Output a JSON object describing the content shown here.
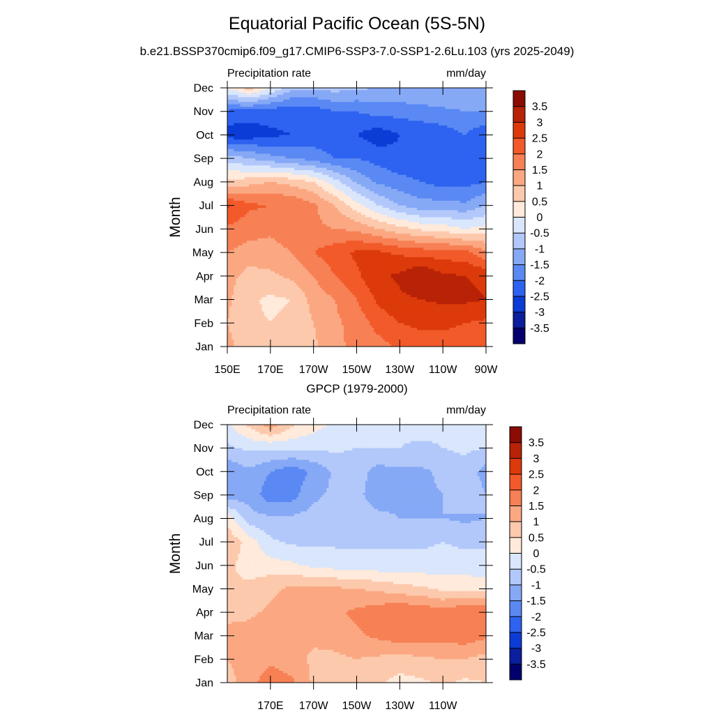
{
  "figure": {
    "title": "Equatorial Pacific Ocean (5S-5N)",
    "subtitle": "b.e21.BSSP370cmip6.f09_g17.CMIP6-SSP3-7.0-SSP1-2.6Lu.103 (yrs 2025-2049)",
    "lower_title": "GPCP (1979-2000)"
  },
  "colorbar": {
    "colors": [
      "#03006d",
      "#0a1e9e",
      "#0c3cd6",
      "#2e62f0",
      "#5a89f4",
      "#86a9f6",
      "#b2c8fa",
      "#d9e6fc",
      "#ffeadb",
      "#fdc9ad",
      "#fba882",
      "#f78055",
      "#f25a2a",
      "#dc3a0a",
      "#b82206",
      "#8a0c03"
    ],
    "labels": [
      "-3.5",
      "-3",
      "-2.5",
      "-2",
      "-1.5",
      "-1",
      "-0.5",
      "0",
      "0.5",
      "1",
      "1.5",
      "2",
      "2.5",
      "3",
      "3.5"
    ]
  },
  "chart_data": [
    {
      "type": "heatmap",
      "title": "",
      "left_label": "Precipitation rate",
      "right_label": "mm/day",
      "ylabel": "Month",
      "xlabel": "",
      "x_ticks": [
        "150E",
        "170E",
        "170W",
        "150W",
        "130W",
        "110W",
        "90W"
      ],
      "x_values": [
        150,
        170,
        190,
        210,
        230,
        250,
        270
      ],
      "xlim": [
        150,
        270
      ],
      "y_ticks": [
        "Jan",
        "Feb",
        "Mar",
        "Apr",
        "May",
        "Jun",
        "Jul",
        "Aug",
        "Sep",
        "Oct",
        "Nov",
        "Dec"
      ],
      "ylim": [
        1,
        12
      ],
      "grid_x": [
        150,
        160,
        170,
        180,
        190,
        200,
        210,
        220,
        230,
        240,
        250,
        260,
        270
      ],
      "grid_y": [
        "Jan",
        "Feb",
        "Mar",
        "Apr",
        "May",
        "Jun",
        "Jul",
        "Aug",
        "Sep",
        "Oct",
        "Nov",
        "Dec"
      ],
      "z": [
        [
          1.2,
          0.6,
          0.8,
          0.6,
          0.9,
          1.4,
          1.6,
          1.8,
          2.1,
          2.3,
          2.3,
          2.2,
          2.0
        ],
        [
          1.0,
          0.6,
          0.5,
          0.6,
          1.0,
          1.4,
          1.7,
          2.2,
          2.5,
          2.6,
          2.6,
          2.5,
          2.4
        ],
        [
          1.1,
          0.6,
          0.4,
          0.5,
          1.2,
          1.5,
          2.0,
          2.6,
          2.9,
          3.0,
          3.1,
          3.1,
          3.0
        ],
        [
          1.2,
          0.8,
          0.9,
          1.1,
          1.5,
          2.0,
          2.4,
          2.9,
          3.1,
          3.5,
          3.1,
          3.0,
          2.9
        ],
        [
          1.5,
          1.3,
          1.3,
          1.5,
          2.0,
          2.3,
          2.6,
          2.6,
          2.4,
          2.3,
          2.2,
          2.2,
          1.6
        ],
        [
          1.9,
          1.7,
          1.6,
          1.8,
          1.6,
          1.5,
          1.4,
          1.0,
          0.7,
          0.4,
          0.3,
          0.0,
          0.2
        ],
        [
          2.6,
          2.1,
          2.0,
          2.0,
          1.6,
          1.0,
          0.2,
          -0.5,
          -1.0,
          -1.3,
          -1.3,
          -1.4,
          -1.0
        ],
        [
          0.6,
          0.8,
          1.0,
          0.8,
          0.5,
          -0.3,
          -1.1,
          -1.6,
          -1.8,
          -2.0,
          -2.2,
          -2.2,
          -2.0
        ],
        [
          -0.7,
          -1.0,
          -1.3,
          -1.5,
          -1.7,
          -2.0,
          -2.0,
          -2.2,
          -2.4,
          -2.4,
          -2.3,
          -2.1,
          -2.1
        ],
        [
          -2.8,
          -2.8,
          -2.6,
          -2.5,
          -2.3,
          -2.4,
          -2.5,
          -2.8,
          -2.5,
          -2.4,
          -2.3,
          -2.0,
          -2.4
        ],
        [
          -2.1,
          -2.2,
          -2.3,
          -2.3,
          -2.3,
          -2.0,
          -2.0,
          -1.8,
          -1.8,
          -1.7,
          -1.6,
          -1.5,
          -1.5
        ],
        [
          0.0,
          0.8,
          0.0,
          -0.9,
          -0.9,
          -0.8,
          -0.9,
          -1.0,
          -1.0,
          -1.0,
          -1.0,
          -1.1,
          -1.1
        ]
      ]
    },
    {
      "type": "heatmap",
      "title": "GPCP (1979-2000)",
      "left_label": "Precipitation rate",
      "right_label": "mm/day",
      "ylabel": "Month",
      "xlabel": "",
      "x_ticks": [
        "170E",
        "170W",
        "150W",
        "130W",
        "110W"
      ],
      "x_values": [
        170,
        190,
        210,
        230,
        250
      ],
      "xlim": [
        150,
        270
      ],
      "y_ticks": [
        "Jan",
        "Feb",
        "Mar",
        "Apr",
        "May",
        "Jun",
        "Jul",
        "Aug",
        "Sep",
        "Oct",
        "Nov",
        "Dec"
      ],
      "ylim": [
        1,
        12
      ],
      "grid_x": [
        150,
        160,
        170,
        180,
        190,
        200,
        210,
        220,
        230,
        240,
        250,
        260,
        270
      ],
      "grid_y": [
        "Jan",
        "Feb",
        "Mar",
        "Apr",
        "May",
        "Jun",
        "Jul",
        "Aug",
        "Sep",
        "Oct",
        "Nov",
        "Dec"
      ],
      "z": [
        [
          0.8,
          1.3,
          1.8,
          1.6,
          0.9,
          0.8,
          0.7,
          0.6,
          0.3,
          0.4,
          0.6,
          0.4,
          0.5
        ],
        [
          1.0,
          1.2,
          1.4,
          1.2,
          0.9,
          0.9,
          1.0,
          0.9,
          0.8,
          0.9,
          1.0,
          1.0,
          0.8
        ],
        [
          1.1,
          1.2,
          1.4,
          1.2,
          1.1,
          1.2,
          1.4,
          1.6,
          1.8,
          1.8,
          1.7,
          1.8,
          1.6
        ],
        [
          0.9,
          0.9,
          1.1,
          1.2,
          1.2,
          1.4,
          1.6,
          1.8,
          2.0,
          1.9,
          1.7,
          2.0,
          1.9
        ],
        [
          0.6,
          0.6,
          0.9,
          1.1,
          1.1,
          1.1,
          1.0,
          0.9,
          0.7,
          0.6,
          0.4,
          0.4,
          0.3
        ],
        [
          0.6,
          0.3,
          0.2,
          0.1,
          -0.1,
          -0.2,
          -0.3,
          -0.3,
          -0.3,
          -0.3,
          -0.3,
          -0.3,
          -0.3
        ],
        [
          0.9,
          0.3,
          -0.4,
          -0.6,
          -0.6,
          -0.6,
          -0.6,
          -0.6,
          -0.6,
          -0.6,
          -0.5,
          -0.6,
          -0.6
        ],
        [
          0.3,
          -0.8,
          -0.9,
          -0.9,
          -0.8,
          -0.8,
          -0.8,
          -0.9,
          -1.0,
          -1.0,
          -1.0,
          -1.1,
          -1.0
        ],
        [
          -1.3,
          -1.2,
          -1.8,
          -1.7,
          -1.1,
          -0.9,
          -0.9,
          -1.2,
          -1.1,
          -1.1,
          -1.0,
          -0.6,
          -1.0
        ],
        [
          -1.4,
          -1.1,
          -1.5,
          -1.8,
          -1.4,
          -0.9,
          -0.8,
          -1.2,
          -1.1,
          -1.1,
          -0.9,
          -0.7,
          -1.2
        ],
        [
          -0.6,
          -0.4,
          -0.4,
          -0.4,
          -0.4,
          -0.4,
          -0.5,
          -0.5,
          -0.5,
          -0.6,
          -0.5,
          -0.4,
          -0.5
        ],
        [
          -0.1,
          0.6,
          1.3,
          0.6,
          0.2,
          -0.1,
          -0.2,
          -0.4,
          -0.4,
          -0.3,
          -0.4,
          -0.4,
          -0.4
        ]
      ]
    }
  ]
}
